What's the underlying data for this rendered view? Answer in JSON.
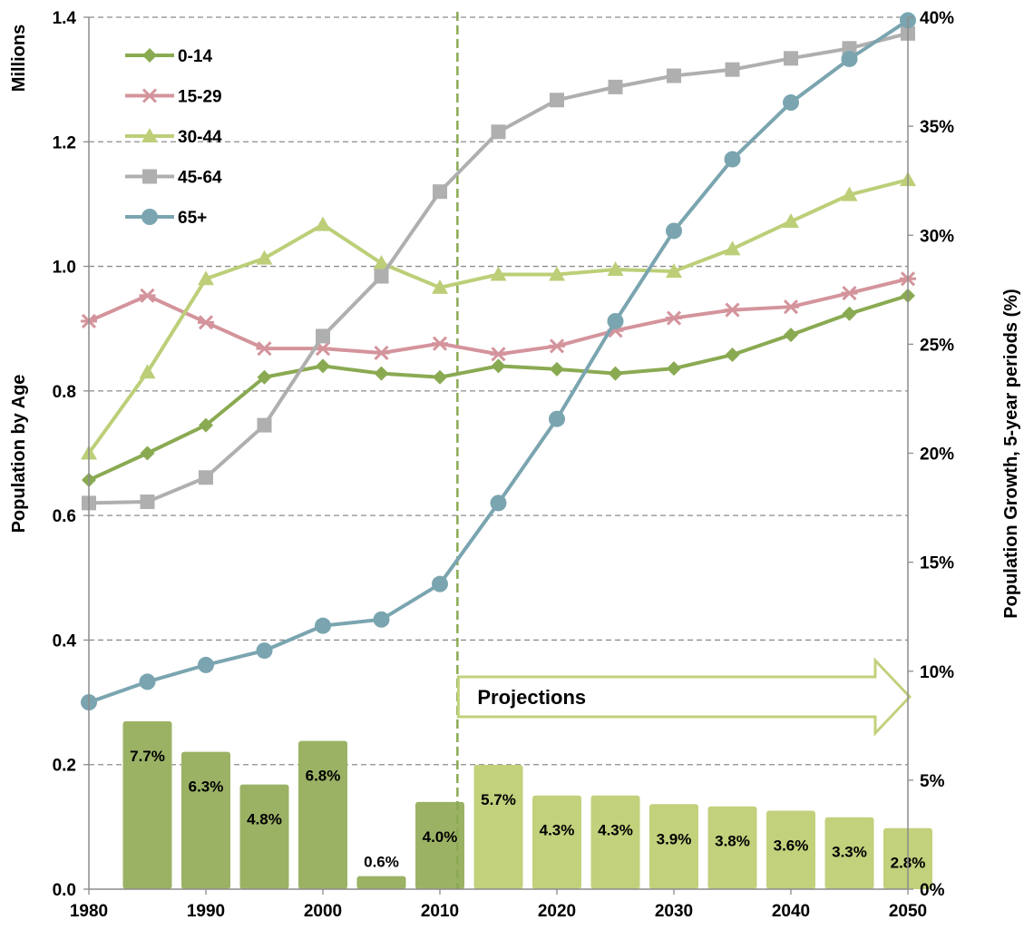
{
  "chart_data": {
    "type": "line",
    "units_label": "Millions",
    "ylabel_left": "Population by Age",
    "ylabel_right": "Population Growth, 5-year periods (%)",
    "left_axis": {
      "min": 0.0,
      "max": 1.4,
      "ticks": [
        "0.0",
        "0.2",
        "0.4",
        "0.6",
        "0.8",
        "1.0",
        "1.2",
        "1.4"
      ]
    },
    "right_axis": {
      "min": 0,
      "max": 40,
      "ticks": [
        "0%",
        "5%",
        "10%",
        "15%",
        "20%",
        "25%",
        "30%",
        "35%",
        "40%"
      ]
    },
    "x_ticks": [
      "1980",
      "1990",
      "2000",
      "2010",
      "2020",
      "2030",
      "2040",
      "2050"
    ],
    "years": [
      1980,
      1985,
      1990,
      1995,
      2000,
      2005,
      2010,
      2015,
      2020,
      2025,
      2030,
      2035,
      2040,
      2045,
      2050
    ],
    "x_range": [
      1980,
      2050
    ],
    "grid": "horizontal dashed",
    "legend_position": "top-left",
    "series": [
      {
        "name": "0-14",
        "marker": "diamond",
        "color": "#8aaa52",
        "values": [
          0.657,
          0.7,
          0.745,
          0.822,
          0.84,
          0.828,
          0.822,
          0.84,
          0.835,
          0.828,
          0.836,
          0.858,
          0.89,
          0.924,
          0.953
        ]
      },
      {
        "name": "15-29",
        "marker": "star",
        "color": "#d4949c",
        "values": [
          0.912,
          0.953,
          0.91,
          0.868,
          0.868,
          0.861,
          0.876,
          0.859,
          0.872,
          0.897,
          0.917,
          0.93,
          0.935,
          0.957,
          0.98
        ]
      },
      {
        "name": "30-44",
        "marker": "triangle",
        "color": "#bccf78",
        "values": [
          0.7,
          0.83,
          0.98,
          1.013,
          1.067,
          1.005,
          0.966,
          0.987,
          0.987,
          0.995,
          0.992,
          1.028,
          1.072,
          1.115,
          1.139
        ]
      },
      {
        "name": "45-64",
        "marker": "square",
        "color": "#afafaf",
        "values": [
          0.62,
          0.622,
          0.661,
          0.745,
          0.888,
          0.984,
          1.12,
          1.216,
          1.267,
          1.288,
          1.306,
          1.316,
          1.334,
          1.35,
          1.374
        ]
      },
      {
        "name": "65+",
        "marker": "circle",
        "color": "#7aa5b0",
        "values": [
          0.3,
          0.333,
          0.36,
          0.383,
          0.423,
          0.433,
          0.49,
          0.62,
          0.755,
          0.912,
          1.057,
          1.172,
          1.263,
          1.333,
          1.395
        ]
      }
    ],
    "growth_bars": {
      "years": [
        1985,
        1990,
        1995,
        2000,
        2005,
        2010,
        2015,
        2020,
        2025,
        2030,
        2035,
        2040,
        2045,
        2050
      ],
      "values": [
        7.7,
        6.3,
        4.8,
        6.8,
        0.6,
        4.0,
        5.7,
        4.3,
        4.3,
        3.9,
        3.8,
        3.6,
        3.3,
        2.8
      ],
      "labels": [
        "7.7%",
        "6.3%",
        "4.8%",
        "6.8%",
        "0.6%",
        "4.0%",
        "5.7%",
        "4.3%",
        "4.3%",
        "3.9%",
        "3.8%",
        "3.6%",
        "3.3%",
        "2.8%"
      ],
      "historical_color": "#9bb265",
      "projection_color": "#c2d17c",
      "projection_start_index": 6
    },
    "projection": {
      "label": "Projections",
      "start_year": 2011.5,
      "line_color": "#8aaa52",
      "arrow_color": "#c2d17c"
    }
  }
}
